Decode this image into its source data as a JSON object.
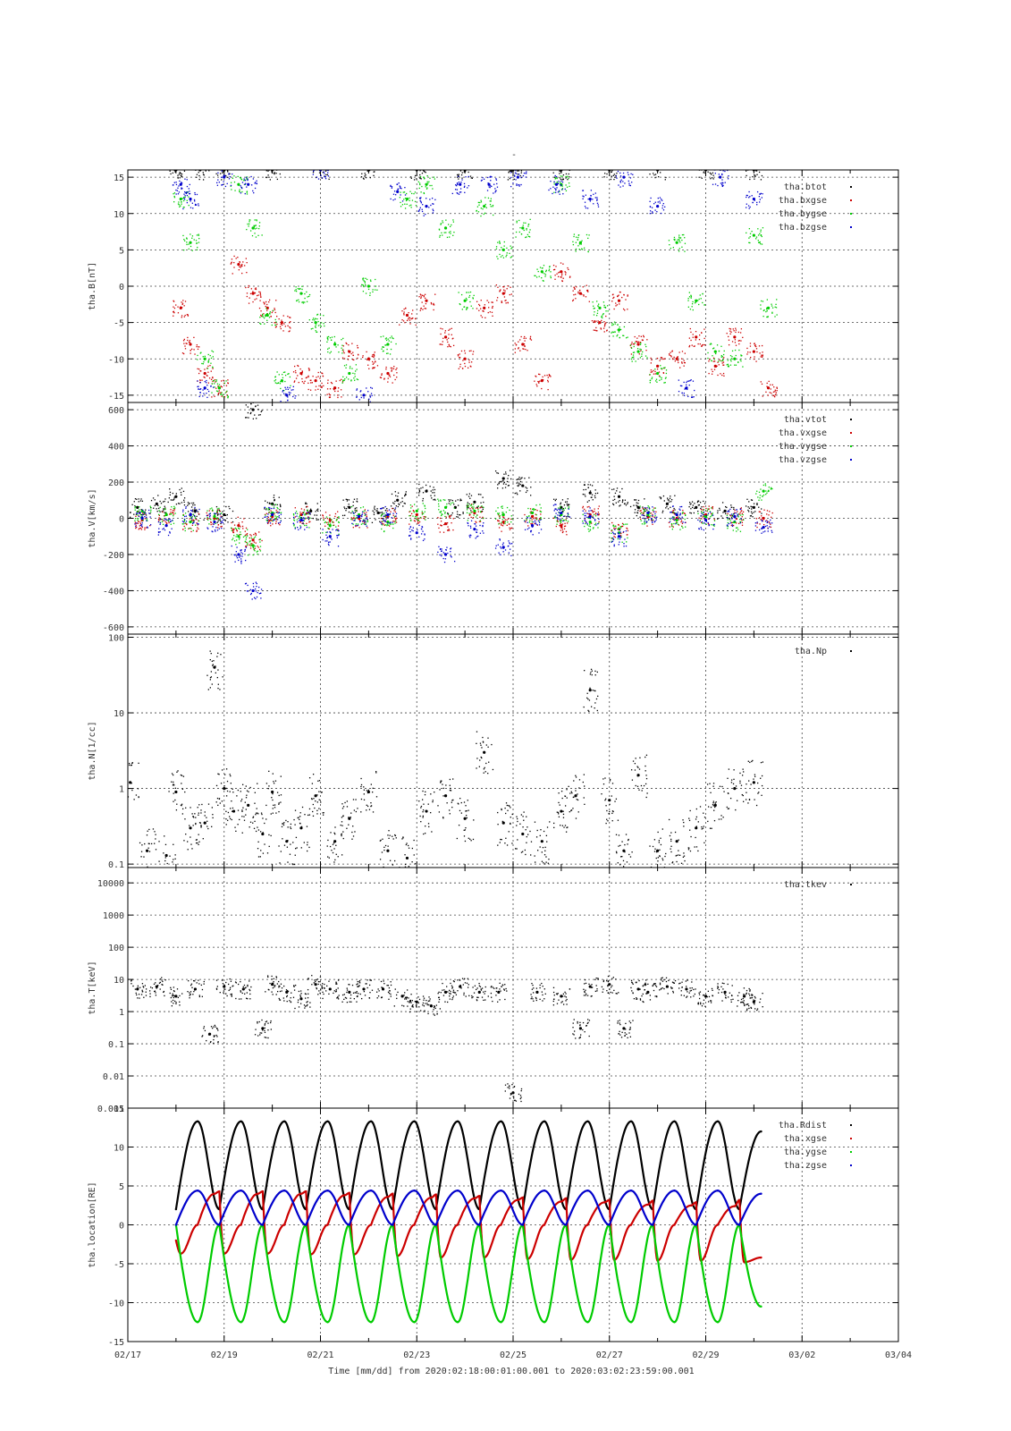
{
  "title": "-",
  "xaxis": {
    "label": "Time [mm/dd]  from 2020:02:18:00:01:00.001  to  2020:03:02:23:59:00.001",
    "ticks": [
      "02/17",
      "02/19",
      "02/21",
      "02/23",
      "02/25",
      "02/27",
      "02/29",
      "03/02",
      "03/04"
    ],
    "range_days": [
      0,
      16
    ]
  },
  "panels": [
    {
      "id": "B",
      "ylabel": "tha.B[nT]",
      "scale": "linear",
      "ylim": [
        -16,
        16
      ],
      "ticks": [
        "15",
        "10",
        "5",
        "0",
        "-5",
        "-10",
        "-15"
      ],
      "tickvals": [
        15,
        10,
        5,
        0,
        -5,
        -10,
        -15
      ],
      "legend": [
        "tha.btot",
        "tha.bxgse",
        "tha.bygse",
        "tha.bzgse"
      ]
    },
    {
      "id": "V",
      "ylabel": "tha.V[km/s]",
      "scale": "linear",
      "ylim": [
        -640,
        640
      ],
      "ticks": [
        "600",
        "400",
        "200",
        "0",
        "-200",
        "-400",
        "-600"
      ],
      "tickvals": [
        600,
        400,
        200,
        0,
        -200,
        -400,
        -600
      ],
      "legend": [
        "tha.vtot",
        "tha.vxgse",
        "tha.vygse",
        "tha.vzgse"
      ]
    },
    {
      "id": "N",
      "ylabel": "tha.N[1/cc]",
      "scale": "log",
      "ylim": [
        0.09,
        110
      ],
      "ticks": [
        "100",
        "10",
        "1",
        "0.1"
      ],
      "tickvals": [
        100,
        10,
        1,
        0.1
      ],
      "legend": [
        "tha.Np"
      ]
    },
    {
      "id": "T",
      "ylabel": "tha.T[keV]",
      "scale": "log",
      "ylim": [
        0.001,
        30000
      ],
      "ticks": [
        "10000",
        "1000",
        "100",
        "10",
        "1",
        "0.1",
        "0.01",
        "0.001"
      ],
      "tickvals": [
        10000,
        1000,
        100,
        10,
        1,
        0.1,
        0.01,
        0.001
      ],
      "legend": [
        "tha.tkev"
      ]
    },
    {
      "id": "L",
      "ylabel": "tha.location[RE]",
      "scale": "linear",
      "ylim": [
        -15,
        15
      ],
      "ticks": [
        "15",
        "10",
        "5",
        "0",
        "-5",
        "-10",
        "-15"
      ],
      "tickvals": [
        15,
        10,
        5,
        0,
        -5,
        -10,
        -15
      ],
      "legend": [
        "tha.Rdist",
        "tha.xgse",
        "tha.ygse",
        "tha.zgse"
      ]
    }
  ],
  "colors": {
    "black": "#000000",
    "red": "#cc0000",
    "green": "#00cc00",
    "blue": "#0000cc"
  },
  "chart_data": [
    {
      "type": "scatter",
      "ylabel": "tha.B[nT]",
      "ylim": [
        -16,
        16
      ],
      "series": [
        {
          "name": "tha.btot",
          "color": "#000000",
          "x": [
            1.0,
            1.5,
            2.0,
            3.0,
            4.0,
            5.0,
            6.0,
            7.0,
            8.0,
            9.0,
            10.0,
            11.0,
            12.0,
            13.0
          ],
          "y": [
            16,
            16,
            16,
            16,
            16,
            16,
            16,
            16,
            16,
            16,
            16,
            16,
            16,
            16
          ]
        },
        {
          "name": "tha.bxgse",
          "color": "#cc0000",
          "x": [
            1.1,
            1.3,
            1.6,
            1.9,
            2.3,
            2.6,
            2.9,
            3.2,
            3.6,
            3.9,
            4.3,
            4.6,
            5.0,
            5.4,
            5.8,
            6.2,
            6.6,
            7.0,
            7.4,
            7.8,
            8.2,
            8.6,
            9.0,
            9.4,
            9.8,
            10.2,
            10.6,
            11.0,
            11.4,
            11.8,
            12.2,
            12.6,
            13.0,
            13.3
          ],
          "y": [
            -3,
            -8,
            -12,
            -14,
            3,
            -1,
            -3,
            -5,
            -12,
            -13,
            -14,
            -9,
            -10,
            -12,
            -4,
            -2,
            -7,
            -10,
            -3,
            -1,
            -8,
            -13,
            2,
            -1,
            -5,
            -2,
            -8,
            -11,
            -10,
            -7,
            -11,
            -7,
            -9,
            -14
          ]
        },
        {
          "name": "tha.bygse",
          "color": "#00cc00",
          "x": [
            1.1,
            1.3,
            1.6,
            1.9,
            2.3,
            2.6,
            2.9,
            3.2,
            3.6,
            3.9,
            4.3,
            4.6,
            5.0,
            5.4,
            5.8,
            6.2,
            6.6,
            7.0,
            7.4,
            7.8,
            8.2,
            8.6,
            9.0,
            9.4,
            9.8,
            10.2,
            10.6,
            11.0,
            11.4,
            11.8,
            12.2,
            12.6,
            13.0,
            13.3
          ],
          "y": [
            12,
            6,
            -10,
            -14,
            14,
            8,
            -4,
            -13,
            -1,
            -5,
            -8,
            -12,
            0,
            -8,
            12,
            14,
            8,
            -2,
            11,
            5,
            8,
            2,
            14,
            6,
            -3,
            -6,
            -9,
            -12,
            6,
            -2,
            -9,
            -10,
            7,
            -3
          ]
        },
        {
          "name": "tha.bzgse",
          "color": "#0000cc",
          "x": [
            1.1,
            1.3,
            1.6,
            2.0,
            2.5,
            3.3,
            4.0,
            4.9,
            5.6,
            6.2,
            6.9,
            7.5,
            8.1,
            8.9,
            9.6,
            10.3,
            11.0,
            11.6,
            12.3,
            13.0
          ],
          "y": [
            14,
            12,
            -14,
            15,
            14,
            -15,
            16,
            -15,
            13,
            11,
            14,
            14,
            15,
            14,
            12,
            15,
            11,
            -14,
            15,
            12
          ]
        }
      ]
    },
    {
      "type": "scatter",
      "ylabel": "tha.V[km/s]",
      "ylim": [
        -640,
        640
      ],
      "series": [
        {
          "name": "tha.vtot",
          "color": "#000000",
          "x": [
            0.2,
            0.6,
            1.0,
            1.4,
            2.0,
            2.6,
            3.0,
            3.8,
            4.6,
            5.2,
            5.6,
            6.2,
            6.8,
            7.2,
            7.8,
            8.2,
            9.0,
            9.6,
            10.2,
            10.6,
            11.2,
            11.8,
            12.4,
            13.0
          ],
          "y": [
            60,
            80,
            120,
            40,
            20,
            600,
            80,
            40,
            60,
            30,
            100,
            150,
            60,
            90,
            220,
            180,
            60,
            140,
            120,
            60,
            80,
            60,
            40,
            60
          ]
        },
        {
          "name": "tha.vxgse",
          "color": "#cc0000",
          "x": [
            0.3,
            0.8,
            1.3,
            1.8,
            2.3,
            2.6,
            3.0,
            3.6,
            4.2,
            4.8,
            5.4,
            6.0,
            6.6,
            7.2,
            7.8,
            8.4,
            9.0,
            9.6,
            10.2,
            10.8,
            11.4,
            12.0,
            12.6,
            13.2
          ],
          "y": [
            -10,
            20,
            -20,
            0,
            -40,
            -120,
            10,
            20,
            -10,
            0,
            10,
            20,
            -30,
            30,
            -20,
            10,
            -40,
            20,
            -60,
            10,
            0,
            20,
            10,
            0
          ]
        },
        {
          "name": "tha.vygse",
          "color": "#00cc00",
          "x": [
            0.3,
            0.8,
            1.3,
            1.8,
            2.3,
            2.6,
            3.0,
            3.6,
            4.2,
            4.8,
            5.4,
            6.0,
            6.6,
            7.2,
            7.8,
            8.4,
            9.0,
            9.6,
            10.2,
            10.8,
            11.4,
            12.0,
            12.6,
            13.2
          ],
          "y": [
            40,
            20,
            -20,
            10,
            -100,
            -150,
            30,
            0,
            -40,
            20,
            -20,
            40,
            60,
            40,
            20,
            30,
            20,
            -20,
            -80,
            20,
            -10,
            10,
            -20,
            150
          ]
        },
        {
          "name": "tha.vzgse",
          "color": "#0000cc",
          "x": [
            0.3,
            0.8,
            1.3,
            1.8,
            2.3,
            2.6,
            3.0,
            3.6,
            4.2,
            4.8,
            5.4,
            6.0,
            6.6,
            7.2,
            7.8,
            8.4,
            9.0,
            9.6,
            10.2,
            10.8,
            11.4,
            12.0,
            12.6,
            13.2
          ],
          "y": [
            0,
            -40,
            20,
            -20,
            -200,
            -400,
            20,
            -10,
            -100,
            10,
            20,
            -80,
            -200,
            -60,
            -160,
            -40,
            30,
            10,
            -100,
            30,
            20,
            -10,
            10,
            -50
          ]
        }
      ]
    },
    {
      "type": "scatter",
      "ylabel": "tha.N[1/cc]",
      "ylim": [
        0.09,
        110
      ],
      "series": [
        {
          "name": "tha.Np",
          "color": "#000000",
          "x": [
            0.05,
            0.4,
            0.8,
            1.0,
            1.3,
            1.6,
            1.8,
            2.0,
            2.2,
            2.5,
            2.8,
            3.0,
            3.3,
            3.6,
            3.9,
            4.3,
            4.6,
            5.0,
            5.4,
            5.8,
            6.2,
            6.6,
            7.0,
            7.4,
            7.8,
            8.2,
            8.6,
            9.0,
            9.3,
            9.6,
            10.0,
            10.3,
            10.6,
            11.0,
            11.4,
            11.8,
            12.2,
            12.6,
            13.0
          ],
          "y": [
            1.2,
            0.15,
            0.13,
            0.9,
            0.3,
            0.35,
            40,
            1.0,
            0.5,
            0.6,
            0.25,
            0.9,
            0.2,
            0.3,
            0.8,
            0.2,
            0.4,
            0.9,
            0.15,
            0.12,
            0.5,
            0.8,
            0.4,
            3,
            0.35,
            0.25,
            0.2,
            0.5,
            0.8,
            20,
            0.7,
            0.15,
            1.5,
            0.15,
            0.2,
            0.3,
            0.6,
            1.0,
            1.2
          ]
        }
      ]
    },
    {
      "type": "scatter",
      "ylabel": "tha.T[keV]",
      "ylim": [
        0.001,
        30000
      ],
      "series": [
        {
          "name": "tha.tkev",
          "color": "#000000",
          "x": [
            0.2,
            0.6,
            1.0,
            1.4,
            1.7,
            2.0,
            2.4,
            2.8,
            3.0,
            3.3,
            3.6,
            3.9,
            4.2,
            4.6,
            4.9,
            5.3,
            5.7,
            6.0,
            6.3,
            6.6,
            6.9,
            7.3,
            7.7,
            8.0,
            8.5,
            9.0,
            9.4,
            9.6,
            10.0,
            10.3,
            10.6,
            10.8,
            11.2,
            11.6,
            12.0,
            12.4,
            12.8,
            13.0
          ],
          "y": [
            5,
            6,
            3,
            5,
            0.2,
            6,
            5,
            0.3,
            7,
            4,
            2.5,
            7,
            5,
            4,
            5,
            5,
            3,
            2,
            1.5,
            4,
            6,
            4,
            4,
            0.003,
            4,
            3,
            0.3,
            6,
            7,
            0.3,
            5,
            4,
            6,
            5,
            3,
            4,
            3,
            2
          ]
        }
      ]
    },
    {
      "type": "line",
      "ylabel": "tha.location[RE]",
      "ylim": [
        -15,
        15
      ],
      "orbit_period_days": 0.9,
      "series": [
        {
          "name": "tha.Rdist",
          "color": "#000000",
          "x": [
            1.0,
            1.45,
            1.9,
            2.35,
            2.8,
            3.25,
            3.7,
            4.15,
            4.6,
            5.05,
            5.5,
            5.95,
            6.4,
            6.85,
            7.3,
            7.75,
            8.2,
            8.65,
            9.1,
            9.55,
            10.0,
            10.45,
            10.9,
            11.35,
            11.8,
            12.25,
            12.7,
            13.15
          ],
          "y": [
            2,
            13.3,
            2,
            13.3,
            2,
            13.3,
            2,
            13.3,
            2,
            13.3,
            2,
            13.3,
            2,
            13.3,
            2,
            13.3,
            2,
            13.3,
            2,
            13.3,
            2,
            13.3,
            2,
            13.3,
            2,
            13.3,
            2,
            12
          ]
        },
        {
          "name": "tha.xgse",
          "color": "#cc0000",
          "x": [
            1.0,
            1.1,
            1.45,
            1.8,
            1.9,
            2.0,
            2.35,
            2.7,
            2.8,
            2.9,
            3.25,
            3.6,
            3.7,
            3.8,
            4.15,
            4.5,
            4.6,
            4.7,
            5.05,
            5.4,
            5.5,
            5.6,
            5.95,
            6.3,
            6.4,
            6.5,
            6.85,
            7.2,
            7.3,
            7.4,
            7.75,
            8.1,
            8.2,
            8.3,
            8.65,
            9.0,
            9.1,
            9.2,
            9.55,
            9.9,
            10.0,
            10.1,
            10.45,
            10.8,
            10.9,
            11.0,
            11.35,
            11.7,
            11.8,
            11.9,
            12.25,
            12.6,
            12.7,
            12.8,
            13.15
          ],
          "y": [
            -2,
            -3.7,
            0,
            4,
            4.3,
            -3.7,
            0,
            4,
            4.3,
            -3.7,
            0,
            4,
            4.3,
            -3.8,
            0,
            3.8,
            4.1,
            -3.8,
            0,
            3.6,
            4,
            -4,
            0,
            3.5,
            3.9,
            -4.2,
            0,
            3.4,
            3.7,
            -4.2,
            0,
            3.2,
            3.5,
            -4.4,
            0,
            3,
            3.4,
            -4.5,
            0,
            2.9,
            3.2,
            -4.5,
            0,
            2.6,
            3.1,
            -4.6,
            0,
            2.5,
            2.9,
            -4.6,
            0,
            2.4,
            3.2,
            -4.8,
            -4.2
          ]
        },
        {
          "name": "tha.ygse",
          "color": "#00cc00",
          "x": [
            1.0,
            1.45,
            1.9,
            2.35,
            2.8,
            3.25,
            3.7,
            4.15,
            4.6,
            5.05,
            5.5,
            5.95,
            6.4,
            6.85,
            7.3,
            7.75,
            8.2,
            8.65,
            9.1,
            9.55,
            10.0,
            10.45,
            10.9,
            11.35,
            11.8,
            12.25,
            12.7,
            13.15
          ],
          "y": [
            0,
            -12.5,
            0,
            -12.5,
            0,
            -12.5,
            0,
            -12.5,
            0,
            -12.5,
            0,
            -12.5,
            0,
            -12.5,
            0,
            -12.5,
            0,
            -12.5,
            0,
            -12.5,
            0,
            -12.5,
            0,
            -12.5,
            0,
            -12.5,
            0,
            -10.5
          ]
        },
        {
          "name": "tha.zgse",
          "color": "#0000cc",
          "x": [
            1.0,
            1.45,
            1.9,
            2.35,
            2.8,
            3.25,
            3.7,
            4.15,
            4.6,
            5.05,
            5.5,
            5.95,
            6.4,
            6.85,
            7.3,
            7.75,
            8.2,
            8.65,
            9.1,
            9.55,
            10.0,
            10.45,
            10.9,
            11.35,
            11.8,
            12.25,
            12.7,
            13.15
          ],
          "y": [
            0,
            4.4,
            0,
            4.4,
            0,
            4.4,
            0,
            4.4,
            0,
            4.4,
            0,
            4.4,
            0,
            4.4,
            0,
            4.4,
            0,
            4.4,
            0,
            4.4,
            0,
            4.4,
            0,
            4.4,
            0,
            4.4,
            0,
            4
          ]
        }
      ]
    }
  ]
}
